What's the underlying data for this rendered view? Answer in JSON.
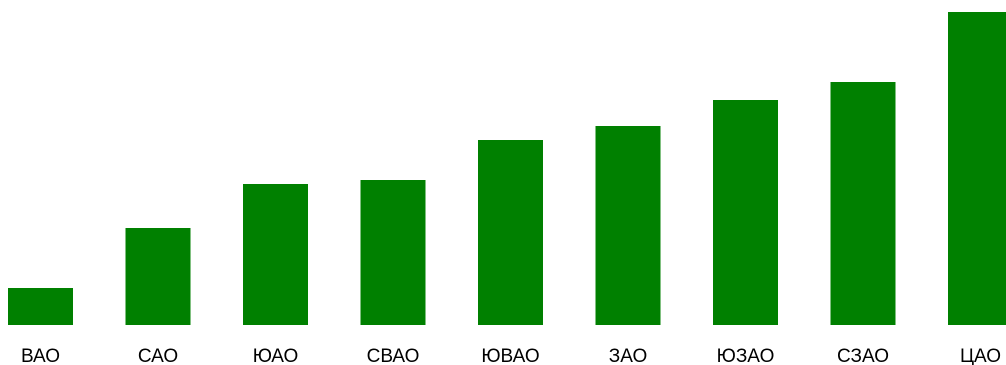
{
  "chart_data": {
    "type": "bar",
    "categories": [
      "ВАО",
      "САО",
      "ЮАО",
      "СВАО",
      "ЮВАО",
      "ЗАО",
      "ЮЗАО",
      "СЗАО",
      "ЦАО"
    ],
    "values": [
      37,
      97,
      141,
      145,
      185,
      199,
      225,
      243,
      313
    ],
    "ylim": [
      0,
      313
    ],
    "bar_color": "#008000",
    "grid": false,
    "legend": "none"
  }
}
